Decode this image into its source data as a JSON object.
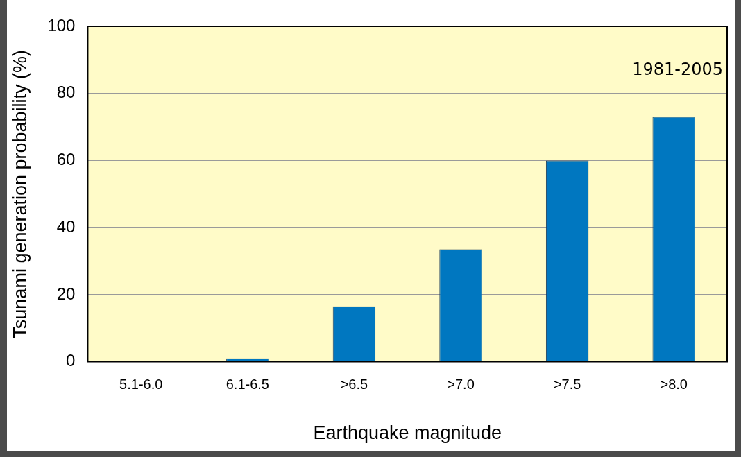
{
  "chart_data": {
    "type": "bar",
    "xlabel": "Earthquake magnitude",
    "ylabel": "Tsunami generation probability (%)",
    "categories": [
      "5.1-6.0",
      "6.1-6.5",
      ">6.5",
      ">7.0",
      ">7.5",
      ">8.0"
    ],
    "values": [
      0,
      1,
      16.5,
      33.5,
      60,
      73
    ],
    "color": "#0077c0",
    "ylim": [
      0,
      100
    ],
    "yticks": [
      0,
      20,
      40,
      60,
      80,
      100
    ],
    "grid": "y",
    "annotations": [
      "1981-2005"
    ]
  }
}
